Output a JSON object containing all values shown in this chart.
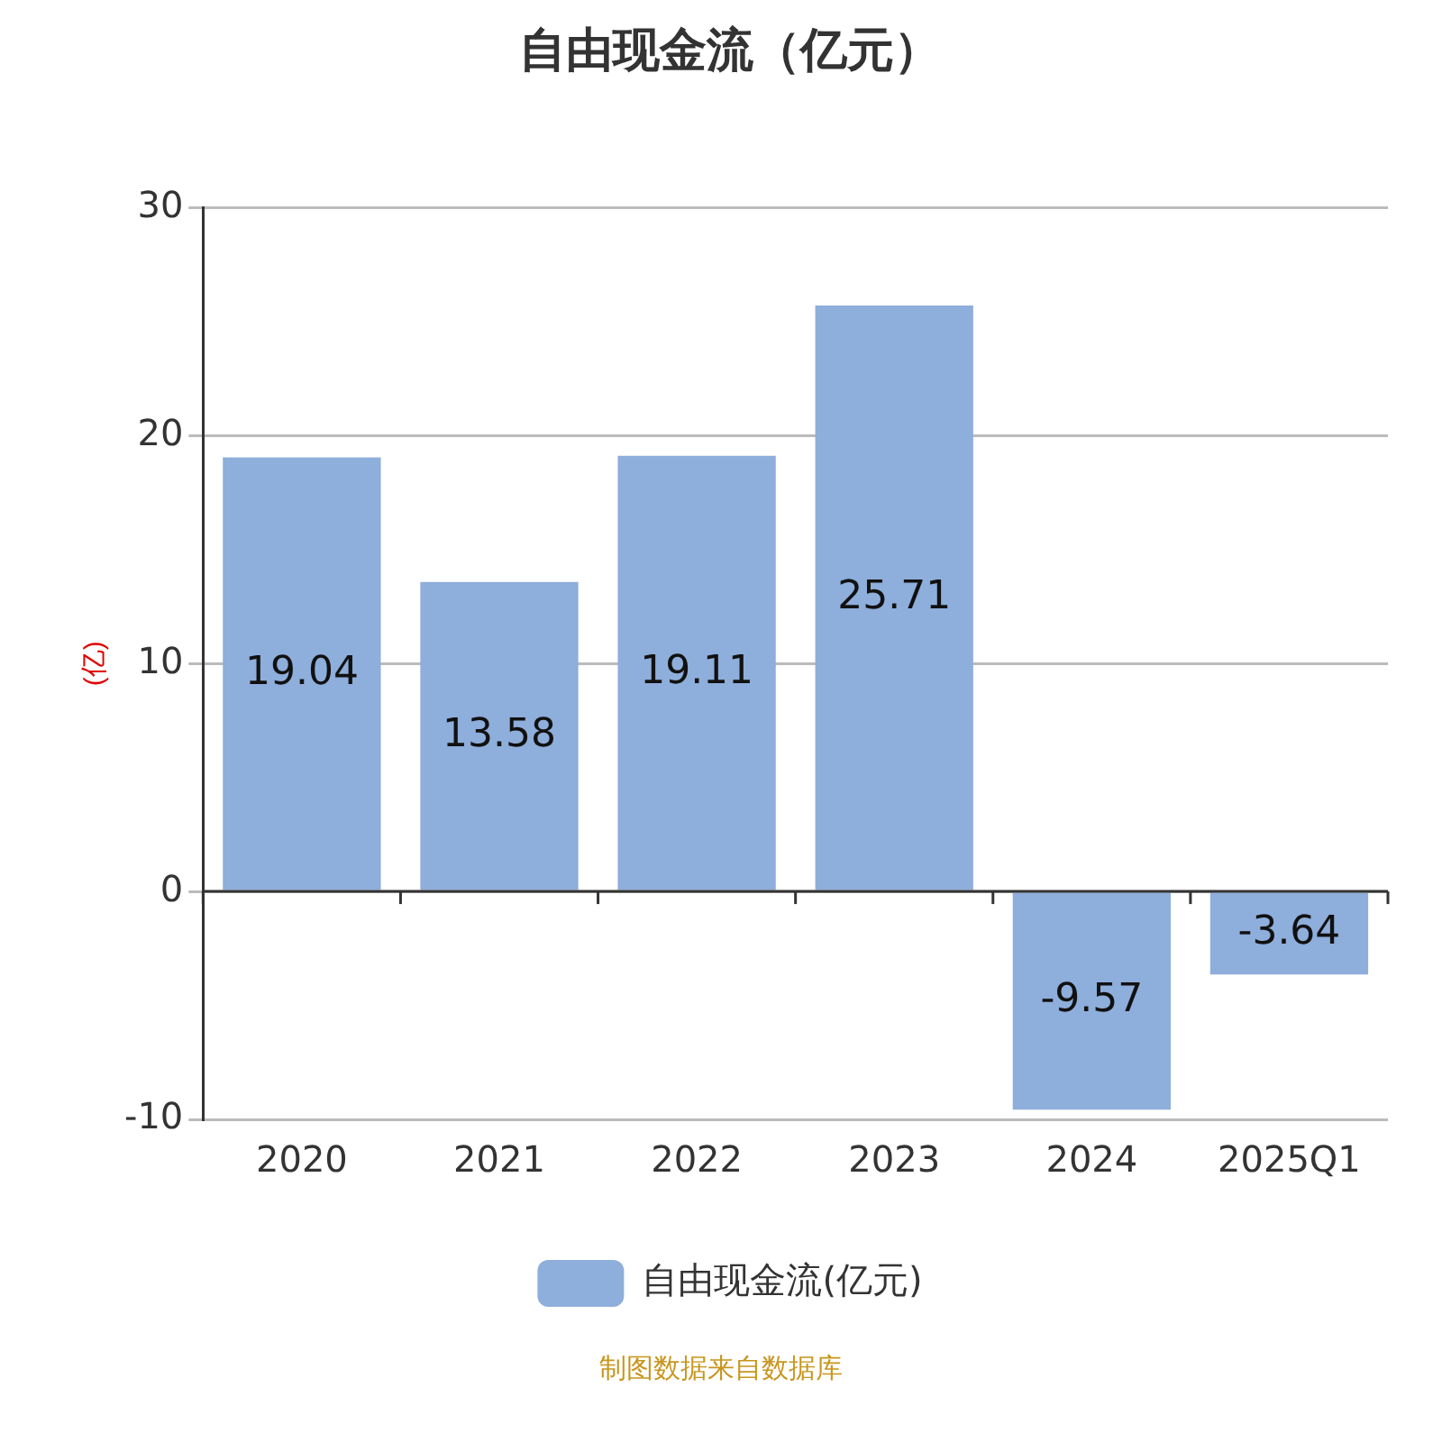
{
  "chart_data": {
    "type": "bar",
    "title": "自由现金流（亿元）",
    "ylabel": "(亿)",
    "categories": [
      "2020",
      "2021",
      "2022",
      "2023",
      "2024",
      "2025Q1"
    ],
    "series": [
      {
        "name": "自由现金流(亿元)",
        "color": "#8eaedb",
        "values": [
          19.04,
          13.58,
          19.11,
          25.71,
          -9.57,
          -3.64
        ]
      }
    ],
    "ylim": [
      -10,
      30
    ],
    "yticks": [
      -10,
      0,
      10,
      20,
      30
    ],
    "grid": "y",
    "legend": "bottom",
    "data_labels": true,
    "annotations": [
      "制图数据来自数据库"
    ]
  }
}
